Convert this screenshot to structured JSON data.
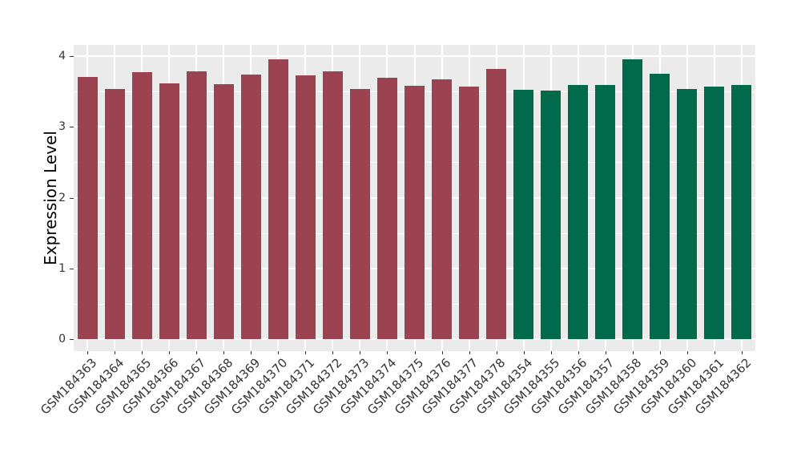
{
  "figure": {
    "background_color": "#FFFFFF"
  },
  "chart_data": {
    "type": "bar",
    "title": "",
    "xlabel": "",
    "ylabel": "Expression Level",
    "ylim": [
      0,
      4.17
    ],
    "yticks": [
      "0",
      "1",
      "2",
      "3",
      "4"
    ],
    "grid": "white major and minor horizontal gridlines, white vertical gridlines at each category, on grey panel",
    "legend_position": "none",
    "panel_bg_color": "#EBEBEB",
    "grid_color": "#FFFFFF",
    "axis_text_color": "#333333",
    "tick_mark_color": "#333333",
    "categories": [
      "GSM184363",
      "GSM184364",
      "GSM184365",
      "GSM184366",
      "GSM184367",
      "GSM184368",
      "GSM184369",
      "GSM184370",
      "GSM184371",
      "GSM184372",
      "GSM184373",
      "GSM184374",
      "GSM184375",
      "GSM184376",
      "GSM184377",
      "GSM184378",
      "GSM184354",
      "GSM184355",
      "GSM184356",
      "GSM184357",
      "GSM184358",
      "GSM184359",
      "GSM184360",
      "GSM184361",
      "GSM184362"
    ],
    "values": [
      3.7,
      3.53,
      3.77,
      3.61,
      3.79,
      3.6,
      3.74,
      3.96,
      3.73,
      3.78,
      3.54,
      3.69,
      3.58,
      3.67,
      3.57,
      3.82,
      3.52,
      3.51,
      3.59,
      3.59,
      3.96,
      3.75,
      3.53,
      3.57,
      3.59
    ],
    "groups": [
      {
        "name": "GSM184363-GSM184378",
        "color": "#9B4350",
        "count": 16
      },
      {
        "name": "GSM184354-GSM184362",
        "color": "#016A4B",
        "count": 9
      }
    ]
  }
}
